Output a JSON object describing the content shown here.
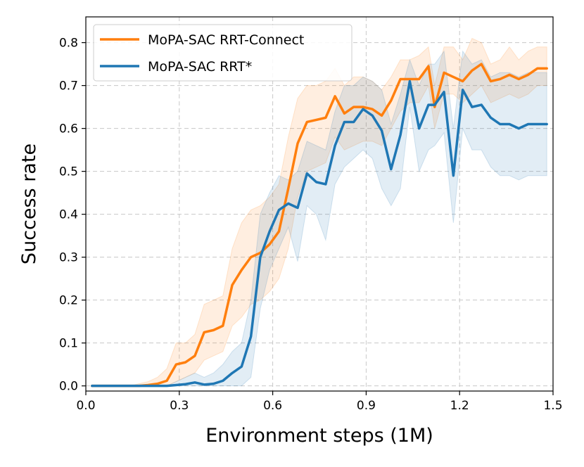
{
  "chart_data": {
    "type": "line",
    "title": "",
    "xlabel": "Environment steps (1M)",
    "ylabel": "Success rate",
    "xlim": [
      0.0,
      1.5
    ],
    "ylim": [
      -0.012,
      0.86
    ],
    "xticks": [
      0.0,
      0.3,
      0.6,
      0.9,
      1.2,
      1.5
    ],
    "xtick_labels": [
      "0.0",
      "0.3",
      "0.6",
      "0.9",
      "1.2",
      "1.5"
    ],
    "yticks": [
      0.0,
      0.1,
      0.2,
      0.3,
      0.4,
      0.5,
      0.6,
      0.7,
      0.8
    ],
    "ytick_labels": [
      "0.0",
      "0.1",
      "0.2",
      "0.3",
      "0.4",
      "0.5",
      "0.6",
      "0.7",
      "0.8"
    ],
    "grid": true,
    "legend_position": "top-left",
    "series": [
      {
        "name": "MoPA-SAC RRT-Connect",
        "color": "#ff7f0e",
        "x": [
          0.02,
          0.05,
          0.08,
          0.11,
          0.14,
          0.17,
          0.2,
          0.23,
          0.26,
          0.29,
          0.32,
          0.35,
          0.38,
          0.41,
          0.44,
          0.47,
          0.5,
          0.53,
          0.56,
          0.59,
          0.62,
          0.65,
          0.68,
          0.71,
          0.74,
          0.77,
          0.8,
          0.83,
          0.86,
          0.89,
          0.92,
          0.95,
          0.98,
          1.01,
          1.04,
          1.07,
          1.1,
          1.12,
          1.15,
          1.18,
          1.21,
          1.24,
          1.27,
          1.3,
          1.33,
          1.36,
          1.39,
          1.42,
          1.45,
          1.48
        ],
        "values": [
          0.0,
          0.0,
          0.0,
          0.0,
          0.0,
          0.0,
          0.002,
          0.005,
          0.012,
          0.05,
          0.055,
          0.07,
          0.125,
          0.13,
          0.14,
          0.235,
          0.27,
          0.3,
          0.31,
          0.33,
          0.36,
          0.46,
          0.565,
          0.615,
          0.62,
          0.625,
          0.675,
          0.635,
          0.65,
          0.65,
          0.645,
          0.63,
          0.665,
          0.715,
          0.715,
          0.715,
          0.745,
          0.65,
          0.73,
          0.72,
          0.71,
          0.735,
          0.75,
          0.71,
          0.715,
          0.725,
          0.715,
          0.725,
          0.74,
          0.74
        ],
        "band_low": [
          0.0,
          0.0,
          0.0,
          0.0,
          0.0,
          0.0,
          0.0,
          0.0,
          0.0,
          0.01,
          0.02,
          0.03,
          0.06,
          0.07,
          0.08,
          0.14,
          0.16,
          0.19,
          0.2,
          0.22,
          0.25,
          0.32,
          0.44,
          0.5,
          0.51,
          0.52,
          0.58,
          0.55,
          0.56,
          0.57,
          0.57,
          0.56,
          0.6,
          0.64,
          0.66,
          0.66,
          0.7,
          0.6,
          0.68,
          0.68,
          0.66,
          0.68,
          0.7,
          0.66,
          0.67,
          0.68,
          0.67,
          0.68,
          0.7,
          0.7
        ],
        "band_high": [
          0.0,
          0.0,
          0.0,
          0.0,
          0.0,
          0.005,
          0.01,
          0.02,
          0.04,
          0.1,
          0.1,
          0.12,
          0.19,
          0.2,
          0.21,
          0.32,
          0.38,
          0.41,
          0.42,
          0.44,
          0.47,
          0.58,
          0.67,
          0.7,
          0.7,
          0.71,
          0.74,
          0.7,
          0.72,
          0.72,
          0.71,
          0.69,
          0.72,
          0.76,
          0.76,
          0.77,
          0.79,
          0.7,
          0.79,
          0.79,
          0.76,
          0.81,
          0.8,
          0.75,
          0.76,
          0.79,
          0.76,
          0.78,
          0.79,
          0.79
        ]
      },
      {
        "name": "MoPA-SAC RRT*",
        "color": "#1f77b4",
        "x": [
          0.02,
          0.05,
          0.08,
          0.11,
          0.14,
          0.17,
          0.2,
          0.23,
          0.26,
          0.29,
          0.32,
          0.35,
          0.38,
          0.41,
          0.44,
          0.47,
          0.5,
          0.53,
          0.56,
          0.59,
          0.62,
          0.65,
          0.68,
          0.71,
          0.74,
          0.77,
          0.8,
          0.83,
          0.86,
          0.89,
          0.92,
          0.95,
          0.98,
          1.01,
          1.04,
          1.07,
          1.1,
          1.12,
          1.15,
          1.18,
          1.21,
          1.24,
          1.27,
          1.3,
          1.33,
          1.36,
          1.39,
          1.42,
          1.45,
          1.48
        ],
        "values": [
          0.0,
          0.0,
          0.0,
          0.0,
          0.0,
          0.0,
          0.0,
          0.0,
          0.0,
          0.002,
          0.004,
          0.008,
          0.003,
          0.005,
          0.012,
          0.03,
          0.045,
          0.115,
          0.3,
          0.36,
          0.41,
          0.425,
          0.415,
          0.495,
          0.475,
          0.47,
          0.56,
          0.615,
          0.615,
          0.645,
          0.63,
          0.595,
          0.505,
          0.585,
          0.71,
          0.6,
          0.655,
          0.655,
          0.685,
          0.49,
          0.69,
          0.65,
          0.655,
          0.625,
          0.61,
          0.61,
          0.6,
          0.61,
          0.61,
          0.61
        ],
        "band_low": [
          0.0,
          0.0,
          0.0,
          0.0,
          0.0,
          0.0,
          0.0,
          0.0,
          0.0,
          0.0,
          0.0,
          0.0,
          0.0,
          0.0,
          0.0,
          0.0,
          0.0,
          0.02,
          0.18,
          0.27,
          0.32,
          0.37,
          0.29,
          0.42,
          0.4,
          0.34,
          0.47,
          0.51,
          0.53,
          0.55,
          0.53,
          0.46,
          0.42,
          0.46,
          0.65,
          0.5,
          0.55,
          0.56,
          0.59,
          0.38,
          0.6,
          0.55,
          0.55,
          0.51,
          0.49,
          0.49,
          0.48,
          0.49,
          0.49,
          0.49
        ],
        "band_high": [
          0.0,
          0.0,
          0.0,
          0.0,
          0.0,
          0.0,
          0.0,
          0.0,
          0.0,
          0.01,
          0.02,
          0.03,
          0.02,
          0.03,
          0.05,
          0.08,
          0.1,
          0.2,
          0.4,
          0.45,
          0.49,
          0.48,
          0.5,
          0.57,
          0.56,
          0.55,
          0.64,
          0.7,
          0.7,
          0.72,
          0.71,
          0.69,
          0.61,
          0.68,
          0.76,
          0.7,
          0.75,
          0.75,
          0.78,
          0.6,
          0.78,
          0.75,
          0.76,
          0.72,
          0.73,
          0.73,
          0.72,
          0.73,
          0.73,
          0.73
        ]
      }
    ]
  }
}
